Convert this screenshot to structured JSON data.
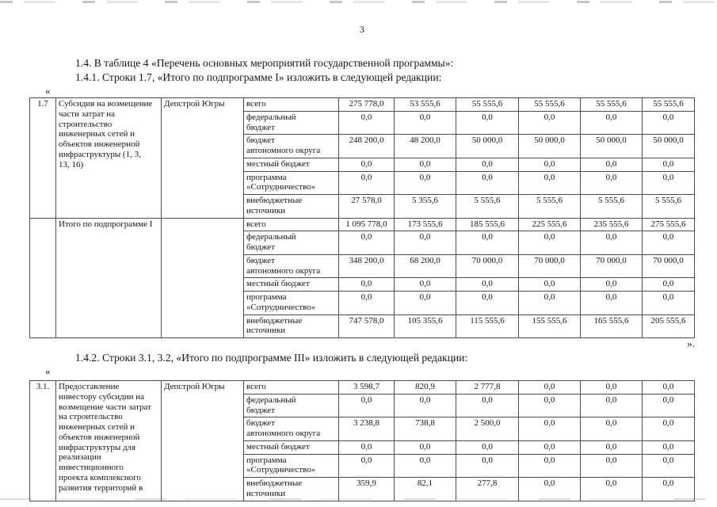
{
  "page": {
    "number": "3",
    "heading_1_4": "1.4. В таблице 4 «Перечень основных мероприятий государственной программы»:",
    "heading_1_4_1": "1.4.1. Строки 1.7, «Итого по подпрограмме I» изложить в следующей редакции:",
    "heading_1_4_2": "1.4.2. Строки 3.1, 3.2, «Итого по подпрограмме III» изложить в следующей редакции:",
    "open_quote_1": "«",
    "close_quote_1": "».",
    "open_quote_2": "«"
  },
  "table1": {
    "blocks": [
      {
        "num": "1.7",
        "description": "Субсидия на возмещение\nчасти затрат на\nстроительство\nинженерных сетей и\nобъектов инженерной\nинфраструктуры (1, 3,\n13, 16)",
        "executor": "Депстрой Югры",
        "rows": [
          {
            "label": "всего",
            "values": [
              "275 778,0",
              "53 555,6",
              "55 555,6",
              "55 555,6",
              "55 555,6",
              "55 555,6"
            ]
          },
          {
            "label": "федеральный\nбюджет",
            "values": [
              "0,0",
              "0,0",
              "0,0",
              "0,0",
              "0,0",
              "0,0"
            ]
          },
          {
            "label": "бюджет\nавтономного округа",
            "values": [
              "248 200,0",
              "48 200,0",
              "50 000,0",
              "50 000,0",
              "50 000,0",
              "50 000,0"
            ]
          },
          {
            "label": "местный бюджет",
            "values": [
              "0,0",
              "0,0",
              "0,0",
              "0,0",
              "0,0",
              "0,0"
            ]
          },
          {
            "label": "программа\n«Сотрудничество»",
            "values": [
              "0,0",
              "0,0",
              "0,0",
              "0,0",
              "0,0",
              "0,0"
            ]
          },
          {
            "label": "внебюджетные\nисточники",
            "values": [
              "27 578,0",
              "5 355,6",
              "5 555,6",
              "5 555,6",
              "5 555,6",
              "5 555,6"
            ]
          }
        ]
      },
      {
        "num": "",
        "description": "Итого по подпрограмме I",
        "executor": "",
        "rows": [
          {
            "label": "всего",
            "values": [
              "1 095 778,0",
              "173 555,6",
              "185 555,6",
              "225 555,6",
              "235 555,6",
              "275 555,6"
            ]
          },
          {
            "label": "федеральный\nбюджет",
            "values": [
              "0,0",
              "0,0",
              "0,0",
              "0,0",
              "0,0",
              "0,0"
            ]
          },
          {
            "label": "бюджет\nавтономного округа",
            "values": [
              "348 200,0",
              "68 200,0",
              "70 000,0",
              "70 000,0",
              "70 000,0",
              "70 000,0"
            ]
          },
          {
            "label": "местный бюджет",
            "values": [
              "0,0",
              "0,0",
              "0,0",
              "0,0",
              "0,0",
              "0,0"
            ]
          },
          {
            "label": "программа\n«Сотрудничество»",
            "values": [
              "0,0",
              "0,0",
              "0,0",
              "0,0",
              "0,0",
              "0,0"
            ]
          },
          {
            "label": "внебюджетные\nисточники",
            "values": [
              "747 578,0",
              "105 355,6",
              "115 555,6",
              "155 555,6",
              "165 555,6",
              "205 555,6"
            ]
          }
        ]
      }
    ]
  },
  "table2": {
    "blocks": [
      {
        "num": "3.1.",
        "description": "Предоставление\nинвестору субсидии на\nвозмещение части затрат\nна строительство\nинженерных сетей и\nобъектов инженерной\nинфраструктуры для\nреализации\nинвестиционного\nпроекта комплексного\nразвития территорий в",
        "executor": "Депстрой Югры",
        "rows": [
          {
            "label": "всего",
            "values": [
              "3 598,7",
              "820,9",
              "2 777,8",
              "0,0",
              "0,0",
              "0,0"
            ]
          },
          {
            "label": "федеральный\nбюджет",
            "values": [
              "0,0",
              "0,0",
              "0,0",
              "0,0",
              "0,0",
              "0,0"
            ]
          },
          {
            "label": "бюджет\nавтономного округа",
            "values": [
              "3 238,8",
              "738,8",
              "2 500,0",
              "0,0",
              "0,0",
              "0,0"
            ]
          },
          {
            "label": "местный бюджет",
            "values": [
              "0,0",
              "0,0",
              "0,0",
              "0,0",
              "0,0",
              "0,0"
            ]
          },
          {
            "label": "программа\n«Сотрудничество»",
            "values": [
              "0,0",
              "0,0",
              "0,0",
              "0,0",
              "0,0",
              "0,0"
            ]
          },
          {
            "label": "внебюджетные\nисточники",
            "values": [
              "359,9",
              "82,1",
              "277,8",
              "0,0",
              "0,0",
              "0,0"
            ]
          }
        ]
      }
    ]
  }
}
